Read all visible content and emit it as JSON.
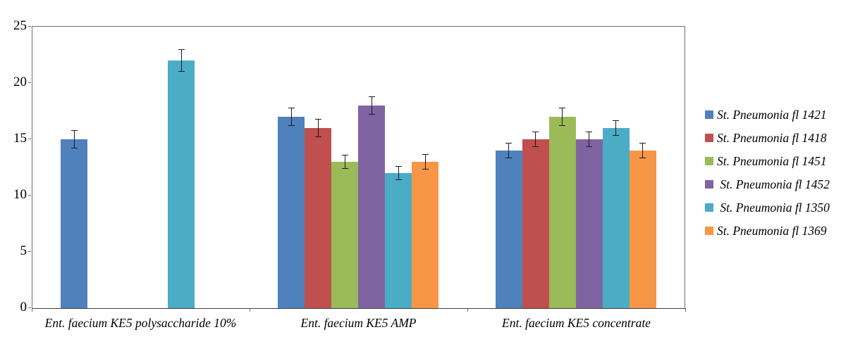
{
  "chart_data": {
    "type": "bar",
    "title": "",
    "xlabel": "",
    "ylabel": "",
    "ylim": [
      0,
      25
    ],
    "yticks": [
      0,
      5,
      10,
      15,
      20,
      25
    ],
    "grid": false,
    "legend_position": "right",
    "error_bars": true,
    "categories": [
      "Ent. faecium KE5 polysaccharide 10%",
      "Ent. faecium KE5 AMP",
      "Ent. faecium KE5 concentrate"
    ],
    "series": [
      {
        "name": "St. Pneumonia fl 1421",
        "color": "#4F81BD",
        "values": [
          15,
          17,
          14
        ],
        "errors": [
          0.8,
          0.8,
          0.7
        ]
      },
      {
        "name": "St. Pneumonia fl 1418",
        "color": "#C0504D",
        "values": [
          null,
          16,
          15
        ],
        "errors": [
          null,
          0.8,
          0.7
        ]
      },
      {
        "name": "St. Pneumonia fl 1451",
        "color": "#9BBB59",
        "values": [
          null,
          13,
          17
        ],
        "errors": [
          null,
          0.6,
          0.8
        ]
      },
      {
        "name": " St. Pneumonia fl 1452",
        "color": "#8064A2",
        "values": [
          null,
          18,
          15
        ],
        "errors": [
          null,
          0.8,
          0.7
        ]
      },
      {
        "name": " St. Pneumonia fl 1350",
        "color": "#4BACC6",
        "values": [
          22,
          12,
          16
        ],
        "errors": [
          1.0,
          0.6,
          0.7
        ]
      },
      {
        "name": "St. Pneumonia fl 1369",
        "color": "#F79646",
        "values": [
          null,
          13,
          14
        ],
        "errors": [
          null,
          0.7,
          0.7
        ]
      }
    ]
  }
}
